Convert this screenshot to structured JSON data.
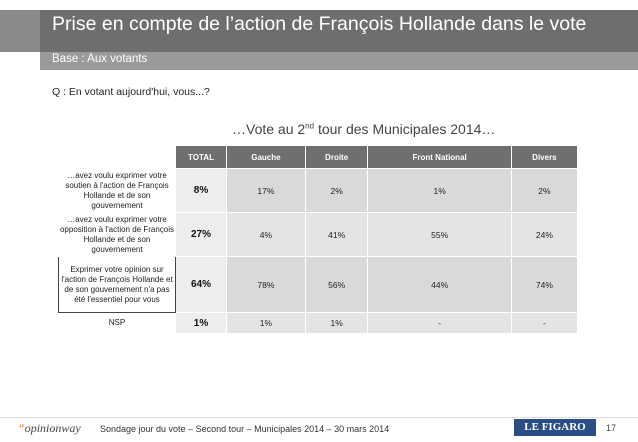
{
  "header": {
    "title": "Prise en compte de l’action de François Hollande dans le vote",
    "subtitle": "Base : Aux votants"
  },
  "question": "Q : En votant aujourd'hui, vous...?",
  "headline": {
    "prefix": "…Vote au 2",
    "sup": "nd",
    "suffix": " tour des Municipales 2014…"
  },
  "table": {
    "columns": [
      "TOTAL",
      "Gauche",
      "Droite",
      "Front National",
      "Divers"
    ],
    "rows": [
      {
        "label": "…avez voulu exprimer votre soutien à l'action de François Hollande et de son gouvernement",
        "total": "8%",
        "values": [
          "17%",
          "2%",
          "1%",
          "2%"
        ]
      },
      {
        "label": "…avez voulu exprimer votre opposition à l'action de François Hollande et de son gouvernement",
        "total": "27%",
        "values": [
          "4%",
          "41%",
          "55%",
          "24%"
        ]
      },
      {
        "label": "Exprimer votre opinion sur l'action de François Hollande et de son gouvernement n'a pas été l'essentiel pour vous",
        "total": "64%",
        "values": [
          "78%",
          "56%",
          "44%",
          "74%"
        ]
      },
      {
        "label": "NSP",
        "total": "1%",
        "values": [
          "1%",
          "1%",
          "-",
          "-"
        ]
      }
    ]
  },
  "footer": {
    "logo_quote": "“",
    "logo_text": "opinionway",
    "source": "Sondage jour du vote – Second tour – Municipales 2014 – 30 mars 2014",
    "partner": "LE FIGARO",
    "page": "17"
  }
}
